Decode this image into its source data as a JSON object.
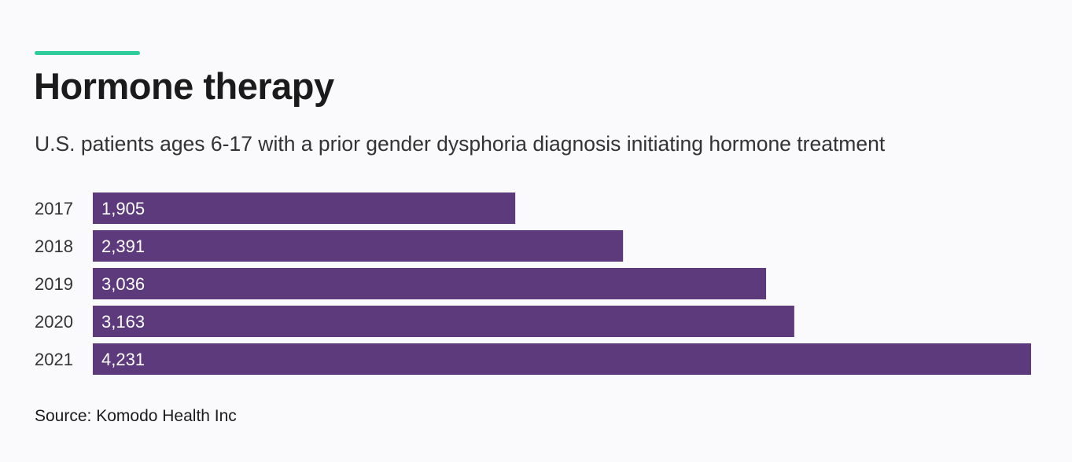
{
  "header": {
    "title": "Hormone therapy",
    "subtitle": "U.S. patients ages 6-17 with a prior gender dysphoria diagnosis initiating hormone treatment"
  },
  "footer": {
    "source": "Source: Komodo Health Inc"
  },
  "colors": {
    "accent": "#2ecc9a",
    "bar": "#5c3a7c",
    "bar_label": "#ffffff",
    "axis_label": "#333333"
  },
  "chart_data": {
    "type": "bar",
    "orientation": "horizontal",
    "title": "Hormone therapy",
    "subtitle": "U.S. patients ages 6-17 with a prior gender dysphoria diagnosis initiating hormone treatment",
    "categories": [
      "2017",
      "2018",
      "2019",
      "2020",
      "2021"
    ],
    "values": [
      1905,
      2391,
      3036,
      3163,
      4231
    ],
    "value_labels": [
      "1,905",
      "2,391",
      "3,036",
      "3,163",
      "4,231"
    ],
    "xlabel": "",
    "ylabel": "",
    "xlim": [
      0,
      4231
    ],
    "grid": false,
    "legend": "none"
  }
}
